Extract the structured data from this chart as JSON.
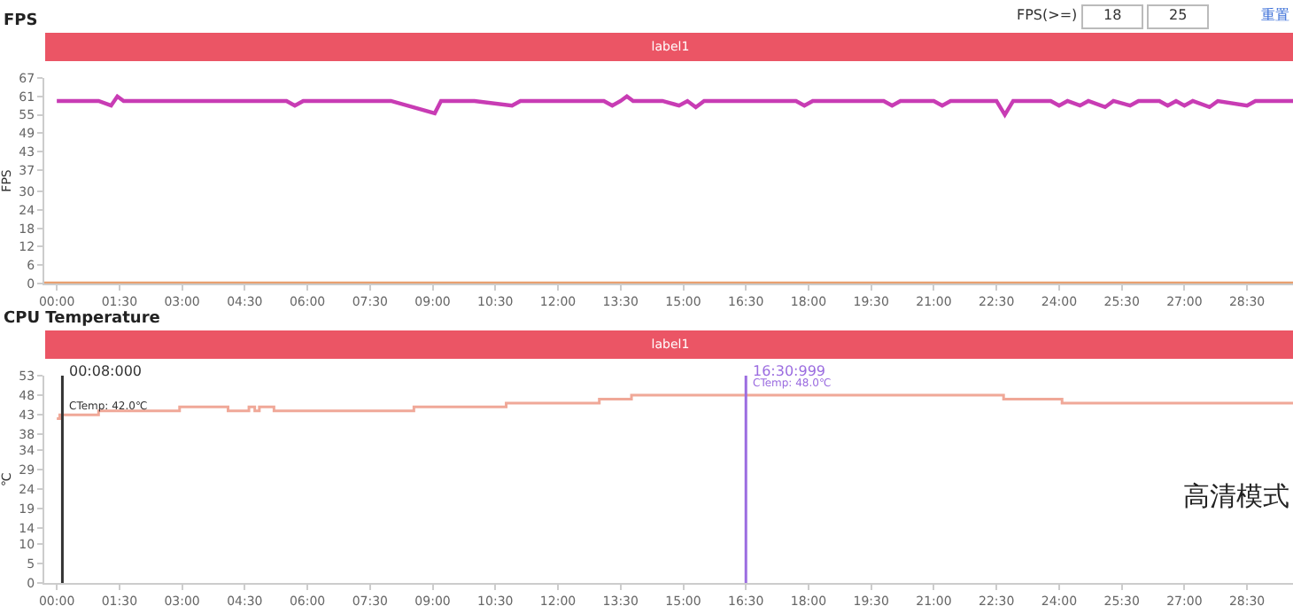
{
  "chart_data": [
    {
      "type": "line",
      "title": "FPS",
      "ylabel": "FPS",
      "xlim": [
        -0.3,
        29.6
      ],
      "xticks": [
        {
          "value": 0,
          "label": "00:00"
        },
        {
          "value": 1.5,
          "label": "01:30"
        },
        {
          "value": 3,
          "label": "03:00"
        },
        {
          "value": 4.5,
          "label": "04:30"
        },
        {
          "value": 6,
          "label": "06:00"
        },
        {
          "value": 7.5,
          "label": "07:30"
        },
        {
          "value": 9,
          "label": "09:00"
        },
        {
          "value": 10.5,
          "label": "10:30"
        },
        {
          "value": 12,
          "label": "12:00"
        },
        {
          "value": 13.5,
          "label": "13:30"
        },
        {
          "value": 15,
          "label": "15:00"
        },
        {
          "value": 16.5,
          "label": "16:30"
        },
        {
          "value": 18,
          "label": "18:00"
        },
        {
          "value": 19.5,
          "label": "19:30"
        },
        {
          "value": 21,
          "label": "21:00"
        },
        {
          "value": 22.5,
          "label": "22:30"
        },
        {
          "value": 24,
          "label": "24:00"
        },
        {
          "value": 25.5,
          "label": "25:30"
        },
        {
          "value": 27,
          "label": "27:00"
        },
        {
          "value": 28.5,
          "label": "28:30"
        }
      ],
      "ylim": [
        0,
        67
      ],
      "yticks": [
        0,
        6,
        12,
        18,
        24,
        30,
        37,
        43,
        49,
        55,
        61,
        67
      ],
      "series": [
        {
          "color": "#c83cb4",
          "x": [
            0,
            0.5,
            1.0,
            1.3,
            1.45,
            1.6,
            2.5,
            3.5,
            4.5,
            5.5,
            5.7,
            5.9,
            7,
            8,
            9.05,
            9.2,
            10,
            10.9,
            11.1,
            12,
            13.1,
            13.3,
            13.5,
            13.65,
            13.8,
            14.5,
            14.9,
            15.1,
            15.3,
            15.5,
            16.5,
            17.7,
            17.9,
            18.1,
            19.8,
            20.0,
            20.2,
            21.0,
            21.2,
            21.4,
            22.5,
            22.7,
            22.9,
            23.8,
            24.0,
            24.2,
            24.5,
            24.7,
            25.1,
            25.3,
            25.7,
            25.9,
            26.4,
            26.6,
            26.8,
            27.0,
            27.2,
            27.6,
            27.8,
            28.5,
            28.7,
            29.6
          ],
          "values": [
            59.5,
            59.5,
            59.5,
            58,
            61,
            59.5,
            59.5,
            59.5,
            59.5,
            59.5,
            58,
            59.5,
            59.5,
            59.5,
            55.5,
            59.5,
            59.5,
            58,
            59.5,
            59.5,
            59.5,
            58,
            59.5,
            61,
            59.5,
            59.5,
            58,
            59.5,
            57.5,
            59.5,
            59.5,
            59.5,
            58,
            59.5,
            59.5,
            58,
            59.5,
            59.5,
            58,
            59.5,
            59.5,
            55,
            59.5,
            59.5,
            58,
            59.5,
            58,
            59.5,
            57.5,
            59.5,
            58,
            59.5,
            59.5,
            58,
            59.5,
            58,
            59.5,
            57.5,
            59.5,
            58,
            59.5,
            59.5
          ]
        },
        {
          "color": "#e8a070",
          "x": [
            -0.3,
            29.6
          ],
          "values": [
            0,
            0
          ]
        }
      ],
      "annotations": [
        "label1",
        "FPS(>=)",
        "18",
        "25",
        "重置"
      ],
      "grid": false,
      "marker": "none",
      "line_style": "solid"
    },
    {
      "type": "step",
      "title": "CPU Temperature",
      "ylabel": "℃",
      "xlim": [
        -0.3,
        29.6
      ],
      "xticks": [
        {
          "value": 0,
          "label": "00:00"
        },
        {
          "value": 1.5,
          "label": "01:30"
        },
        {
          "value": 3,
          "label": "03:00"
        },
        {
          "value": 4.5,
          "label": "04:30"
        },
        {
          "value": 6,
          "label": "06:00"
        },
        {
          "value": 7.5,
          "label": "07:30"
        },
        {
          "value": 9,
          "label": "09:00"
        },
        {
          "value": 10.5,
          "label": "10:30"
        },
        {
          "value": 12,
          "label": "12:00"
        },
        {
          "value": 13.5,
          "label": "13:30"
        },
        {
          "value": 15,
          "label": "15:00"
        },
        {
          "value": 16.5,
          "label": "16:30"
        },
        {
          "value": 18,
          "label": "18:00"
        },
        {
          "value": 19.5,
          "label": "19:30"
        },
        {
          "value": 21,
          "label": "21:00"
        },
        {
          "value": 22.5,
          "label": "22:30"
        },
        {
          "value": 24,
          "label": "24:00"
        },
        {
          "value": 25.5,
          "label": "25:30"
        },
        {
          "value": 27,
          "label": "27:00"
        },
        {
          "value": 28.5,
          "label": "28:30"
        }
      ],
      "ylim": [
        0,
        53
      ],
      "yticks": [
        0,
        5,
        10,
        14,
        19,
        24,
        29,
        34,
        38,
        43,
        48,
        53
      ],
      "series": [
        {
          "color": "#f0a898",
          "x": [
            0,
            0.07,
            1.0,
            2.94,
            4.1,
            4.6,
            4.74,
            4.85,
            5.2,
            8.55,
            10.76,
            12.99,
            13.76,
            22.67,
            24.07,
            29.6
          ],
          "values": [
            42,
            43,
            44,
            45,
            44,
            45,
            44,
            45,
            44,
            45,
            46,
            47,
            48,
            47,
            46,
            46
          ]
        }
      ],
      "ref_lines": [
        {
          "axis": "x",
          "value": 0.133,
          "label": "00:08:000",
          "color": "#333333"
        },
        {
          "axis": "x",
          "value": 16.5,
          "label": "16:30:999",
          "color": "#9b6ce0"
        }
      ],
      "annotations": [
        "label1",
        {
          "text": "CTemp: 42.0℃",
          "x": 0.133,
          "y": 42
        },
        {
          "text": "CTemp: 48.0℃",
          "x": 16.5,
          "y": 48
        },
        "高清模式"
      ],
      "grid": false,
      "marker": "none",
      "line_style": "solid"
    }
  ]
}
